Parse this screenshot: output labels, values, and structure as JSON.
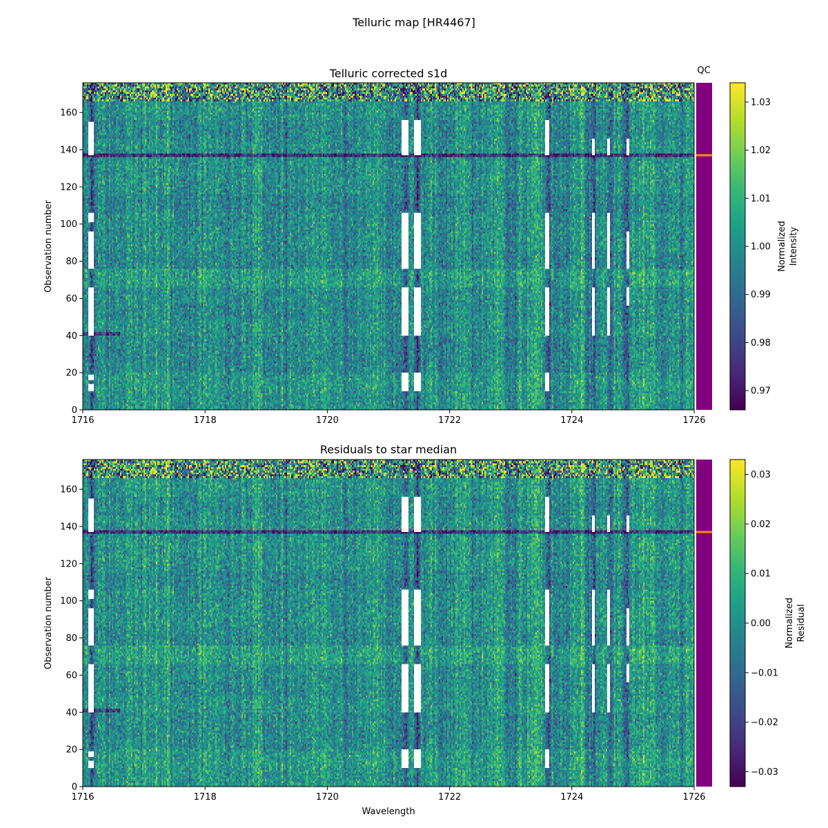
{
  "figure": {
    "title": "Telluric map [HR4467]"
  },
  "colors": {
    "qc_fill": "#800080",
    "qc_marker": "#ff8c00",
    "masked": "#ffffff",
    "viridis": [
      "#440154",
      "#482878",
      "#3e4989",
      "#31688e",
      "#26828e",
      "#1f9e89",
      "#35b779",
      "#6ece58",
      "#b5de2b",
      "#fde725"
    ]
  },
  "chart_data": [
    {
      "type": "heatmap",
      "title": "Telluric corrected s1d",
      "xlabel": "",
      "ylabel": "Observation number",
      "xlim": [
        1716,
        1726
      ],
      "ylim": [
        0,
        176
      ],
      "xticks": [
        "1716",
        "1718",
        "1720",
        "1722",
        "1724",
        "1726"
      ],
      "yticks": [
        "0",
        "20",
        "40",
        "60",
        "80",
        "100",
        "120",
        "140",
        "160"
      ],
      "colorbar": {
        "label": [
          "Normalized",
          "Intensity"
        ],
        "range": [
          0.966,
          1.034
        ],
        "ticks": [
          "0.97",
          "0.98",
          "0.99",
          "1.00",
          "1.01",
          "1.02",
          "1.03"
        ]
      },
      "qc_label": "QC",
      "qc_flag_observation": 137
    },
    {
      "type": "heatmap",
      "title": "Residuals to star median",
      "xlabel": "Wavelength",
      "ylabel": "Observation number",
      "xlim": [
        1716,
        1726
      ],
      "ylim": [
        0,
        176
      ],
      "xticks": [
        "1716",
        "1718",
        "1720",
        "1722",
        "1724",
        "1726"
      ],
      "yticks": [
        "0",
        "20",
        "40",
        "60",
        "80",
        "100",
        "120",
        "140",
        "160"
      ],
      "colorbar": {
        "label": [
          "Normalized",
          "Residual"
        ],
        "range": [
          -0.033,
          0.033
        ],
        "ticks": [
          "−0.03",
          "−0.02",
          "−0.01",
          "0.00",
          "0.01",
          "0.02",
          "0.03"
        ]
      },
      "qc_label": "",
      "qc_flag_observation": 137
    }
  ],
  "masked_regions": [
    {
      "wl": [
        1716.1,
        1716.18
      ],
      "obs": [
        [
          10,
          14
        ],
        [
          16,
          19
        ],
        [
          40,
          66
        ],
        [
          76,
          96
        ],
        [
          101,
          106
        ],
        [
          137,
          155
        ]
      ]
    },
    {
      "wl": [
        1721.22,
        1721.33
      ],
      "obs": [
        [
          10,
          20
        ],
        [
          40,
          66
        ],
        [
          76,
          106
        ],
        [
          137,
          156
        ]
      ]
    },
    {
      "wl": [
        1721.42,
        1721.52
      ],
      "obs": [
        [
          10,
          20
        ],
        [
          40,
          66
        ],
        [
          76,
          106
        ],
        [
          137,
          156
        ]
      ]
    },
    {
      "wl": [
        1723.57,
        1723.64
      ],
      "obs": [
        [
          10,
          20
        ],
        [
          40,
          66
        ],
        [
          76,
          106
        ],
        [
          137,
          156
        ]
      ]
    },
    {
      "wl": [
        1724.33,
        1724.38
      ],
      "obs": [
        [
          40,
          66
        ],
        [
          76,
          106
        ],
        [
          137,
          146
        ]
      ]
    },
    {
      "wl": [
        1724.58,
        1724.63
      ],
      "obs": [
        [
          40,
          66
        ],
        [
          76,
          106
        ],
        [
          137,
          146
        ]
      ]
    },
    {
      "wl": [
        1724.89,
        1724.95
      ],
      "obs": [
        [
          56,
          66
        ],
        [
          76,
          96
        ],
        [
          137,
          146
        ]
      ]
    }
  ]
}
